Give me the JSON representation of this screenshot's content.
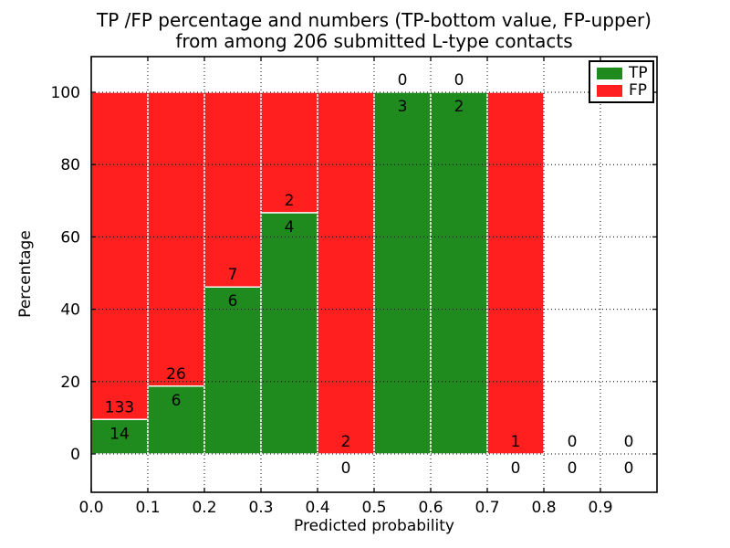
{
  "chart_data": {
    "type": "bar",
    "stacked": true,
    "normalized_to_percent": true,
    "title_line1": "TP /FP percentage and numbers (TP-bottom value, FP-upper)",
    "title_line2": "from among 206 submitted L-type contacts",
    "total_submitted_contacts": 206,
    "xlabel": "Predicted probability",
    "ylabel": "Percentage",
    "x_ticks": [
      "0.0",
      "0.1",
      "0.2",
      "0.3",
      "0.4",
      "0.5",
      "0.6",
      "0.7",
      "0.8",
      "0.9"
    ],
    "y_ticks": [
      0,
      20,
      40,
      60,
      80,
      100
    ],
    "xlim": [
      0.0,
      1.0
    ],
    "ylim": [
      -11,
      110
    ],
    "bin_width": 0.1,
    "grid": "dotted black, drawn above bars",
    "categories": [
      "0.0-0.1",
      "0.1-0.2",
      "0.2-0.3",
      "0.3-0.4",
      "0.4-0.5",
      "0.5-0.6",
      "0.6-0.7",
      "0.7-0.8",
      "0.8-0.9",
      "0.9-1.0"
    ],
    "series": [
      {
        "name": "TP",
        "color": "#1f8b1f",
        "counts": [
          14,
          6,
          6,
          4,
          0,
          3,
          2,
          0,
          0,
          0
        ],
        "pct": [
          9.52,
          18.75,
          46.15,
          66.67,
          0,
          100,
          100,
          0,
          0,
          0
        ]
      },
      {
        "name": "FP",
        "color": "#ff1f1f",
        "counts": [
          133,
          26,
          7,
          2,
          2,
          0,
          0,
          1,
          0,
          0
        ],
        "pct": [
          90.48,
          81.25,
          53.85,
          33.33,
          100,
          0,
          0,
          100,
          0,
          0
        ]
      }
    ],
    "bins": [
      {
        "x_start": 0.0,
        "tp": 14,
        "fp": 133,
        "tp_pct": 9.52,
        "fp_pct": 90.48
      },
      {
        "x_start": 0.1,
        "tp": 6,
        "fp": 26,
        "tp_pct": 18.75,
        "fp_pct": 81.25
      },
      {
        "x_start": 0.2,
        "tp": 6,
        "fp": 7,
        "tp_pct": 46.15,
        "fp_pct": 53.85
      },
      {
        "x_start": 0.3,
        "tp": 4,
        "fp": 2,
        "tp_pct": 66.67,
        "fp_pct": 33.33
      },
      {
        "x_start": 0.4,
        "tp": 0,
        "fp": 2,
        "tp_pct": 0,
        "fp_pct": 100
      },
      {
        "x_start": 0.5,
        "tp": 3,
        "fp": 0,
        "tp_pct": 100,
        "fp_pct": 0
      },
      {
        "x_start": 0.6,
        "tp": 2,
        "fp": 0,
        "tp_pct": 100,
        "fp_pct": 0
      },
      {
        "x_start": 0.7,
        "tp": 0,
        "fp": 1,
        "tp_pct": 0,
        "fp_pct": 100
      },
      {
        "x_start": 0.8,
        "tp": 0,
        "fp": 0,
        "tp_pct": 0,
        "fp_pct": 0
      },
      {
        "x_start": 0.9,
        "tp": 0,
        "fp": 0,
        "tp_pct": 0,
        "fp_pct": 0
      }
    ],
    "legend": {
      "position": "upper right",
      "entries": [
        {
          "label": "TP",
          "color": "#1f8b1f"
        },
        {
          "label": "FP",
          "color": "#ff1f1f"
        }
      ]
    },
    "colors": {
      "tp": "#1f8b1f",
      "fp": "#ff1f1f",
      "grid": "#000000",
      "bar_edge": "#ffffff",
      "frame": "#000000",
      "background": "#ffffff"
    }
  }
}
